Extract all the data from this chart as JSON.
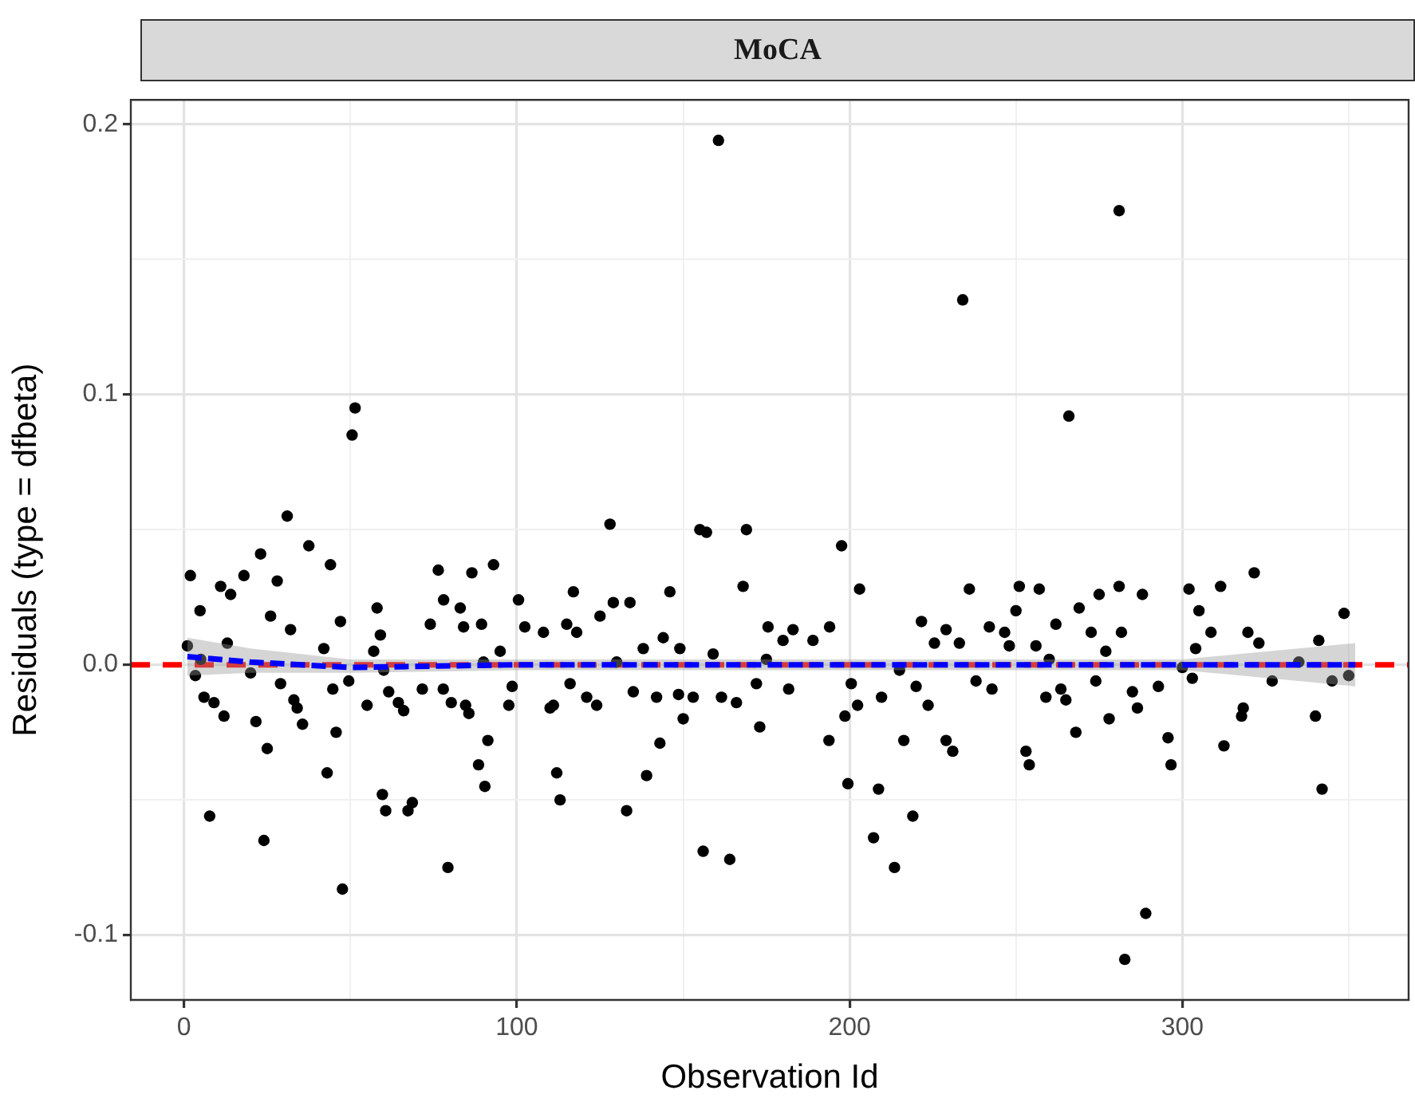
{
  "chart_data": {
    "type": "scatter",
    "title": "MoCA",
    "xlabel": "Observation Id",
    "ylabel": "Residuals (type = dfbeta)",
    "xlim": [
      -16,
      368
    ],
    "ylim": [
      -0.124,
      0.209
    ],
    "xticks": [
      0,
      {
        "value": 50,
        "label": null
      },
      100,
      {
        "value": 150,
        "label": null
      },
      200,
      {
        "value": 250,
        "label": null
      },
      300,
      {
        "value": 350,
        "label": null
      }
    ],
    "yticks": [
      {
        "value": -0.1,
        "label": "-0.1"
      },
      {
        "value": -0.05,
        "label": null
      },
      {
        "value": 0,
        "label": "0.0"
      },
      {
        "value": 0.05,
        "label": null
      },
      {
        "value": 0.1,
        "label": "0.1"
      },
      {
        "value": 0.15,
        "label": null
      },
      {
        "value": 0.2,
        "label": "0.2"
      }
    ],
    "grid": true,
    "ref_lines": [
      {
        "axis": "y",
        "value": 0,
        "color": "#ff0000",
        "line_style": "dashed"
      }
    ],
    "series": [
      {
        "type": "scatter",
        "color": "#000000",
        "marker": "circle",
        "x": [
          1.9,
          4.8,
          1,
          11,
          14,
          18,
          23,
          31,
          28,
          26,
          32,
          37.5,
          44,
          47,
          42,
          51.4,
          50.5,
          58,
          59,
          57,
          76.4,
          78,
          83,
          84,
          74,
          86.5,
          89.4,
          93,
          95,
          100.5,
          102.4,
          108,
          13,
          3.4,
          6,
          9,
          12,
          7.7,
          21.6,
          25,
          24,
          20,
          29,
          33,
          34,
          35.6,
          44.7,
          45.7,
          43,
          47.6,
          49.5,
          55,
          61.5,
          64.4,
          66,
          59.6,
          60.6,
          67.3,
          68.6,
          71.6,
          77.9,
          80.3,
          84.6,
          85.6,
          79.3,
          91.3,
          88.5,
          90.4,
          98.6,
          97.6,
          110,
          112,
          113,
          128,
          117,
          115,
          118,
          125,
          129,
          134,
          146,
          144,
          138,
          149,
          155,
          157,
          169,
          168,
          175.5,
          180,
          183,
          189,
          194,
          197.6,
          203,
          221.6,
          225.5,
          229,
          233,
          236,
          159,
          160.6,
          281,
          234,
          116,
          111,
          121,
          124,
          135,
          142,
          143,
          139,
          133,
          148.6,
          153,
          150,
          156,
          164,
          161.5,
          166,
          173,
          172,
          181.7,
          193.8,
          198.6,
          200.5,
          202.4,
          199.5,
          208.7,
          207.2,
          213.5,
          219,
          216.3,
          209.6,
          223.6,
          229,
          231,
          220,
          265.9,
          251,
          257,
          250,
          242,
          246.6,
          248,
          256,
          262,
          269,
          272.6,
          275,
          281,
          281.7,
          288,
          302,
          305,
          308.6,
          311.5,
          304,
          321.6,
          319.7,
          323,
          341,
          348.6,
          277,
          242.8,
          259,
          265,
          263.5,
          268,
          253,
          254,
          274,
          278,
          285,
          286.5,
          292.8,
          295.7,
          296.6,
          289,
          282.7,
          312.5,
          317.8,
          318.3,
          340,
          342,
          238,
          303,
          327,
          345,
          5,
          60,
          90,
          130,
          175,
          215,
          260,
          300,
          335,
          350
        ],
        "values": [
          0.033,
          0.02,
          0.007,
          0.029,
          0.026,
          0.033,
          0.041,
          0.055,
          0.031,
          0.018,
          0.013,
          0.044,
          0.037,
          0.016,
          0.006,
          0.095,
          0.085,
          0.021,
          0.011,
          0.005,
          0.035,
          0.024,
          0.021,
          0.014,
          0.015,
          0.034,
          0.015,
          0.037,
          0.005,
          0.024,
          0.014,
          0.012,
          0.008,
          -0.004,
          -0.012,
          -0.014,
          -0.019,
          -0.056,
          -0.021,
          -0.031,
          -0.065,
          -0.003,
          -0.007,
          -0.013,
          -0.016,
          -0.022,
          -0.009,
          -0.025,
          -0.04,
          -0.083,
          -0.006,
          -0.015,
          -0.01,
          -0.014,
          -0.017,
          -0.048,
          -0.054,
          -0.054,
          -0.051,
          -0.009,
          -0.009,
          -0.014,
          -0.015,
          -0.018,
          -0.075,
          -0.028,
          -0.037,
          -0.045,
          -0.008,
          -0.015,
          -0.016,
          -0.04,
          -0.05,
          0.052,
          0.027,
          0.015,
          0.012,
          0.018,
          0.023,
          0.023,
          0.027,
          0.01,
          0.006,
          0.006,
          0.05,
          0.049,
          0.05,
          0.029,
          0.014,
          0.009,
          0.013,
          0.009,
          0.014,
          0.044,
          0.028,
          0.016,
          0.008,
          0.013,
          0.008,
          0.028,
          0.004,
          0.194,
          0.168,
          0.135,
          -0.007,
          -0.015,
          -0.012,
          -0.015,
          -0.01,
          -0.012,
          -0.029,
          -0.041,
          -0.054,
          -0.011,
          -0.012,
          -0.02,
          -0.069,
          -0.072,
          -0.012,
          -0.014,
          -0.023,
          -0.007,
          -0.009,
          -0.028,
          -0.019,
          -0.007,
          -0.015,
          -0.044,
          -0.046,
          -0.064,
          -0.075,
          -0.056,
          -0.028,
          -0.012,
          -0.015,
          -0.028,
          -0.032,
          -0.008,
          0.092,
          0.029,
          0.028,
          0.02,
          0.014,
          0.012,
          0.007,
          0.007,
          0.015,
          0.021,
          0.012,
          0.026,
          0.029,
          0.012,
          0.026,
          0.028,
          0.02,
          0.012,
          0.029,
          0.006,
          0.034,
          0.012,
          0.008,
          0.009,
          0.019,
          0.005,
          -0.009,
          -0.012,
          -0.013,
          -0.009,
          -0.025,
          -0.032,
          -0.037,
          -0.006,
          -0.02,
          -0.01,
          -0.016,
          -0.008,
          -0.027,
          -0.037,
          -0.092,
          -0.109,
          -0.03,
          -0.019,
          -0.016,
          -0.019,
          -0.046,
          -0.006,
          -0.005,
          -0.006,
          -0.006,
          0.002,
          -0.002,
          0.001,
          0.001,
          0.002,
          -0.002,
          0.002,
          -0.001,
          0.001,
          -0.004
        ]
      },
      {
        "type": "line",
        "color": "#0000ff",
        "line_style": "dashed",
        "marker": "none",
        "x": [
          1,
          20,
          50,
          100,
          150,
          200,
          250,
          300,
          352
        ],
        "values": [
          0.003,
          0.001,
          -0.001,
          0.0,
          0.0,
          0.0,
          0.0,
          0.0,
          0.0
        ],
        "lower": [
          -0.004,
          -0.003,
          -0.003,
          -0.002,
          -0.002,
          -0.002,
          -0.002,
          -0.002,
          -0.008
        ],
        "upper": [
          0.01,
          0.006,
          0.002,
          0.002,
          0.002,
          0.002,
          0.002,
          0.002,
          0.008
        ]
      }
    ]
  }
}
